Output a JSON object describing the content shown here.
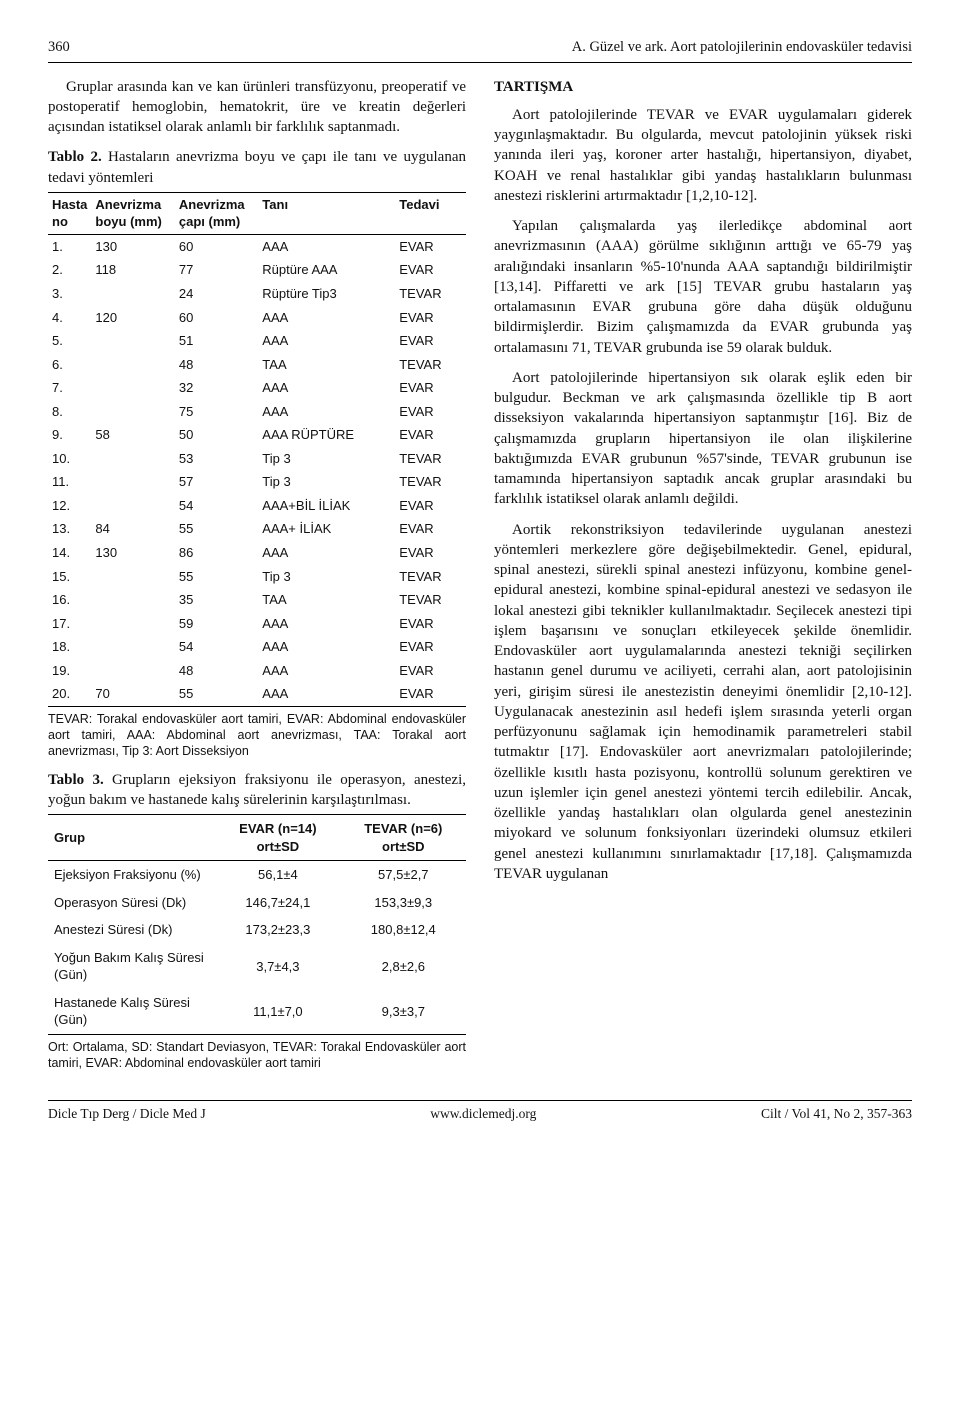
{
  "header": {
    "page_number": "360",
    "running_title": "A. Güzel ve ark. Aort patolojilerinin endovasküler tedavisi"
  },
  "left": {
    "intro_para": "Gruplar arasında kan ve kan ürünleri transfüzyonu, preoperatif ve postoperatif hemoglobin, hematokrit, üre ve kreatin değerleri açısından istatiksel olarak anlamlı bir farklılık saptanmadı.",
    "table2": {
      "type": "table",
      "caption_label": "Tablo 2.",
      "caption_text": " Hastaların anevrizma boyu ve çapı ile tanı ve uygulanan tedavi yöntemleri",
      "columns": [
        "Hasta no",
        "Anevrizma boyu (mm)",
        "Anevrizma çapı (mm)",
        "Tanı",
        "Tedavi"
      ],
      "rows": [
        [
          "1.",
          "130",
          "60",
          "AAA",
          "EVAR"
        ],
        [
          "2.",
          "118",
          "77",
          "Rüptüre AAA",
          "EVAR"
        ],
        [
          "3.",
          "",
          "24",
          "Rüptüre Tip3",
          "TEVAR"
        ],
        [
          "4.",
          "120",
          "60",
          "AAA",
          "EVAR"
        ],
        [
          "5.",
          "",
          "51",
          "AAA",
          "EVAR"
        ],
        [
          "6.",
          "",
          "48",
          "TAA",
          "TEVAR"
        ],
        [
          "7.",
          "",
          "32",
          "AAA",
          "EVAR"
        ],
        [
          "8.",
          "",
          "75",
          "AAA",
          "EVAR"
        ],
        [
          "9.",
          "58",
          "50",
          "AAA RÜPTÜRE",
          "EVAR"
        ],
        [
          "10.",
          "",
          "53",
          "Tip 3",
          "TEVAR"
        ],
        [
          "11.",
          "",
          "57",
          "Tip 3",
          "TEVAR"
        ],
        [
          "12.",
          "",
          "54",
          "AAA+BİL İLİAK",
          "EVAR"
        ],
        [
          "13.",
          "84",
          "55",
          "AAA+ İLİAK",
          "EVAR"
        ],
        [
          "14.",
          "130",
          "86",
          "AAA",
          "EVAR"
        ],
        [
          "15.",
          "",
          "55",
          "Tip 3",
          "TEVAR"
        ],
        [
          "16.",
          "",
          "35",
          "TAA",
          "TEVAR"
        ],
        [
          "17.",
          "",
          "59",
          "AAA",
          "EVAR"
        ],
        [
          "18.",
          "",
          "54",
          "AAA",
          "EVAR"
        ],
        [
          "19.",
          "",
          "48",
          "AAA",
          "EVAR"
        ],
        [
          "20.",
          "70",
          "55",
          "AAA",
          "EVAR"
        ]
      ],
      "abbrev": "TEVAR: Torakal endovasküler aort tamiri, EVAR: Abdominal endovasküler aort tamiri,\nAAA: Abdominal aort anevrizması, TAA: Torakal aort anevrizması, Tip 3: Aort Disseksiyon"
    },
    "table3": {
      "type": "table",
      "caption_label": "Tablo 3.",
      "caption_text": " Grupların ejeksiyon fraksiyonu ile operasyon, anestezi, yoğun bakım ve hastanede kalış sürelerinin karşılaştırılması.",
      "col1_header": "Grup",
      "col2_header_line1": "EVAR (n=14)",
      "col2_header_line2": "ort±SD",
      "col3_header_line1": "TEVAR (n=6)",
      "col3_header_line2": "ort±SD",
      "rows": [
        [
          "Ejeksiyon Fraksiyonu (%)",
          "56,1±4",
          "57,5±2,7"
        ],
        [
          "Operasyon Süresi (Dk)",
          "146,7±24,1",
          "153,3±9,3"
        ],
        [
          "Anestezi Süresi (Dk)",
          "173,2±23,3",
          "180,8±12,4"
        ],
        [
          "Yoğun Bakım Kalış Süresi (Gün)",
          "3,7±4,3",
          "2,8±2,6"
        ],
        [
          "Hastanede Kalış Süresi (Gün)",
          "11,1±7,0",
          "9,3±3,7"
        ]
      ],
      "abbrev": "Ort: Ortalama, SD: Standart Deviasyon, TEVAR: Torakal Endovasküler aort tamiri, EVAR: Abdominal endovasküler aort tamiri"
    }
  },
  "right": {
    "heading": "TARTIŞMA",
    "p1": "Aort patolojilerinde TEVAR ve EVAR uygulamaları giderek yaygınlaşmaktadır. Bu olgularda, mevcut patolojinin yüksek riski yanında ileri yaş, koroner arter hastalığı, hipertansiyon, diyabet, KOAH ve renal hastalıklar gibi yandaş hastalıkların bulunması anestezi risklerini artırmaktadır [1,2,10-12].",
    "p2": "Yapılan çalışmalarda yaş ilerledikçe abdominal aort anevrizmasının (AAA) görülme sıklığının arttığı ve 65-79 yaş aralığındaki insanların %5-10'nunda AAA saptandığı bildirilmiştir [13,14]. Piffaretti ve ark [15] TEVAR grubu hastaların yaş ortalamasının EVAR grubuna göre daha düşük olduğunu bildirmişlerdir. Bizim çalışmamızda da EVAR grubunda yaş ortalamasını 71, TEVAR grubunda ise 59 olarak bulduk.",
    "p3": "Aort patolojilerinde hipertansiyon sık olarak eşlik eden bir bulgudur. Beckman ve ark çalışmasında özellikle tip B aort disseksiyon vakalarında hipertansiyon saptanmıştır [16]. Biz de çalışmamızda grupların hipertansiyon ile olan ilişkilerine baktığımızda EVAR grubunun %57'sinde, TEVAR grubunun ise tamamında hipertansiyon saptadık ancak gruplar arasındaki bu farklılık istatiksel olarak anlamlı değildi.",
    "p4": "Aortik rekonstriksiyon tedavilerinde uygulanan anestezi yöntemleri merkezlere göre değişebilmektedir. Genel, epidural, spinal anestezi, sürekli spinal anestezi infüzyonu, kombine genel-epidural anestezi, kombine spinal-epidural anestezi ve sedasyon ile lokal anestezi gibi teknikler kullanılmaktadır. Seçilecek anestezi tipi işlem başarısını ve sonuçları etkileyecek şekilde önemlidir. Endovasküler aort uygulamalarında anestezi tekniği seçilirken hastanın genel durumu ve aciliyeti, cerrahi alan, aort patolojisinin yeri, girişim süresi ile anestezistin deneyimi önemlidir [2,10-12]. Uygulanacak anestezinin asıl hedefi işlem sırasında yeterli organ perfüzyonunu sağlamak için hemodinamik parametreleri stabil tutmaktır [17]. Endovasküler aort anevrizmaları patolojilerinde; özellikle kısıtlı hasta pozisyonu, kontrollü solunum gerektiren ve uzun işlemler için genel anestezi yöntemi tercih edilebilir. Ancak, özellikle yandaş hastalıkları olan olgularda genel anestezinin miyokard ve solunum fonksiyonları üzerindeki olumsuz etkileri genel anestezi kullanımını sınırlamaktadır [17,18]. Çalışmamızda TEVAR uygulanan"
  },
  "footer": {
    "left": "Dicle Tıp Derg / Dicle Med J",
    "center": "www.diclemedj.org",
    "right": "Cilt / Vol 41, No 2, 357-363"
  }
}
